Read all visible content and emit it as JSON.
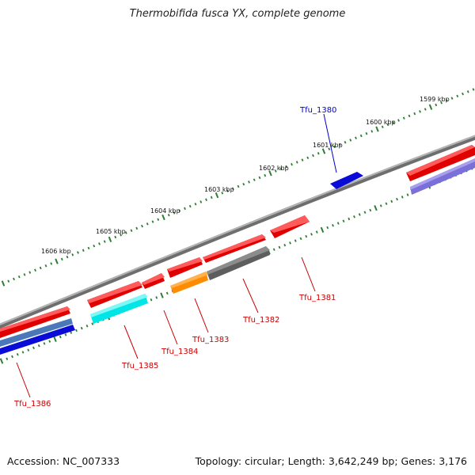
{
  "title": "Thermobifida fusca YX, complete genome",
  "footer": {
    "accession": "Accession: NC_007333",
    "topology": "Topology: circular; Length: 3,642,249 bp; Genes: 3,176"
  },
  "colors": {
    "backbone": "#8a8a8a",
    "ticks": "#2e7d32",
    "label_forward": "#0000cc",
    "label_reverse": "#cc0000"
  },
  "scale_labels": [
    "1599 kbp",
    "1600 kbp",
    "1601 kbp",
    "1602 kbp",
    "1603 kbp",
    "1604 kbp",
    "1605 kbp",
    "1606 kbp"
  ],
  "gene_labels": [
    {
      "id": "Tfu_1380",
      "strand": "forward",
      "color": "blue"
    },
    {
      "id": "Tfu_1381",
      "strand": "reverse",
      "color": "red"
    },
    {
      "id": "Tfu_1382",
      "strand": "reverse",
      "color": "red"
    },
    {
      "id": "Tfu_1383",
      "strand": "reverse",
      "color": "red"
    },
    {
      "id": "Tfu_1384",
      "strand": "reverse",
      "color": "red"
    },
    {
      "id": "Tfu_1385",
      "strand": "reverse",
      "color": "red"
    },
    {
      "id": "Tfu_1386",
      "strand": "reverse",
      "color": "red"
    }
  ]
}
